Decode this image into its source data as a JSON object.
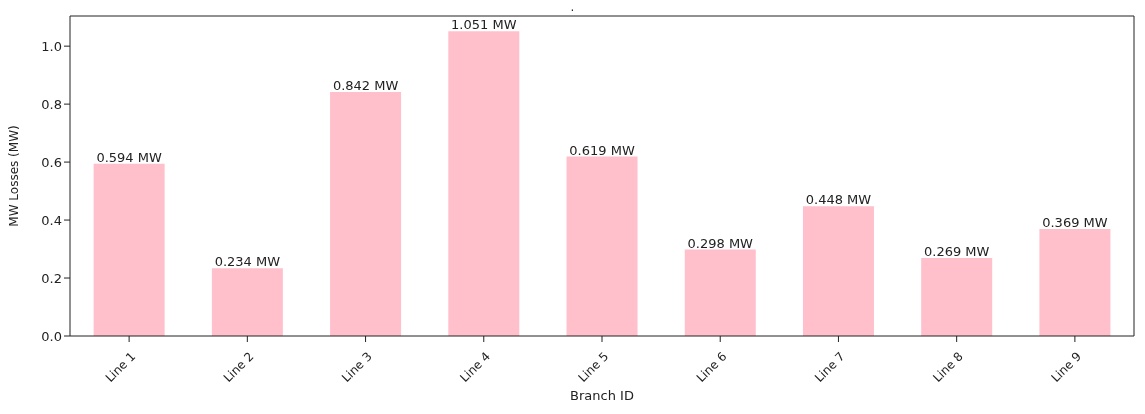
{
  "chart_data": {
    "type": "bar",
    "title": ".",
    "xlabel": "Branch ID",
    "ylabel": "MW Losses (MW)",
    "categories": [
      "Line 1",
      "Line 2",
      "Line 3",
      "Line 4",
      "Line 5",
      "Line 6",
      "Line 7",
      "Line 8",
      "Line 9"
    ],
    "values": [
      0.594,
      0.234,
      0.842,
      1.051,
      0.619,
      0.298,
      0.448,
      0.269,
      0.369
    ],
    "value_labels": [
      "0.594 MW",
      "0.234 MW",
      "0.842 MW",
      "1.051 MW",
      "0.619 MW",
      "0.298 MW",
      "0.448 MW",
      "0.269 MW",
      "0.369 MW"
    ],
    "color": "#ffc0cb",
    "ylim": [
      0,
      1.104
    ],
    "yticks": [
      {
        "value": 0,
        "label": "0.0"
      },
      {
        "value": 0.2,
        "label": "0.2"
      },
      {
        "value": 0.4,
        "label": "0.4"
      },
      {
        "value": 0.6,
        "label": "0.6"
      },
      {
        "value": 0.8,
        "label": "0.8"
      },
      {
        "value": 1,
        "label": "1.0"
      }
    ],
    "grid": false,
    "legend": false
  }
}
